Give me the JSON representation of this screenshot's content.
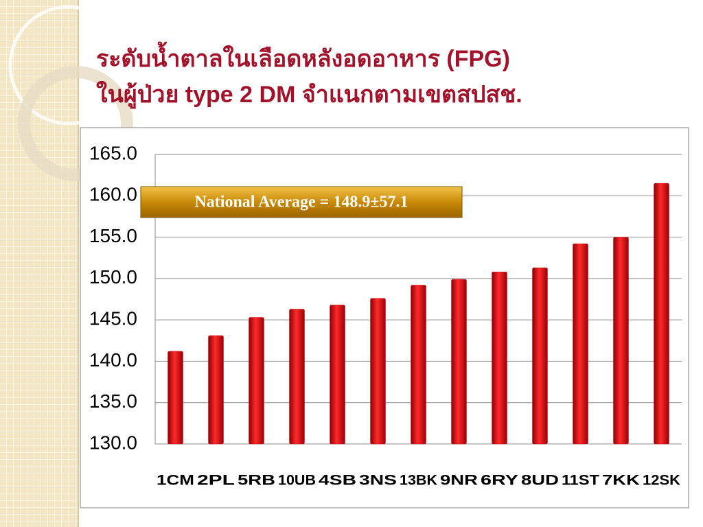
{
  "chart_data": {
    "type": "bar",
    "title": [
      "ระดับน้ำตาลในเลือดหลังอดอาหาร (FPG)",
      "ในผู้ป่วย type 2 DM จำแนกตามเขตสปสช."
    ],
    "annotation": "National Average = 148.9±57.1",
    "categories": [
      "1CM",
      "2PL",
      "5RB",
      "10UB",
      "4SB",
      "3NS",
      "13BK",
      "9NR",
      "6RY",
      "8UD",
      "11ST",
      "7KK",
      "12SK"
    ],
    "values": [
      141.2,
      143.1,
      145.3,
      146.3,
      146.8,
      147.6,
      149.2,
      149.9,
      150.8,
      151.3,
      154.2,
      155.0,
      161.5
    ],
    "color": "#d40d12",
    "ylim": [
      130,
      165
    ],
    "yticks": [
      {
        "value": 130,
        "label": "130.0"
      },
      {
        "value": 135,
        "label": "135.0"
      },
      {
        "value": 140,
        "label": "140.0"
      },
      {
        "value": 145,
        "label": "145.0"
      },
      {
        "value": 150,
        "label": "150.0"
      },
      {
        "value": 155,
        "label": "155.0"
      },
      {
        "value": 160,
        "label": "160.0"
      },
      {
        "value": 165,
        "label": "165.0"
      }
    ],
    "grid": true
  }
}
